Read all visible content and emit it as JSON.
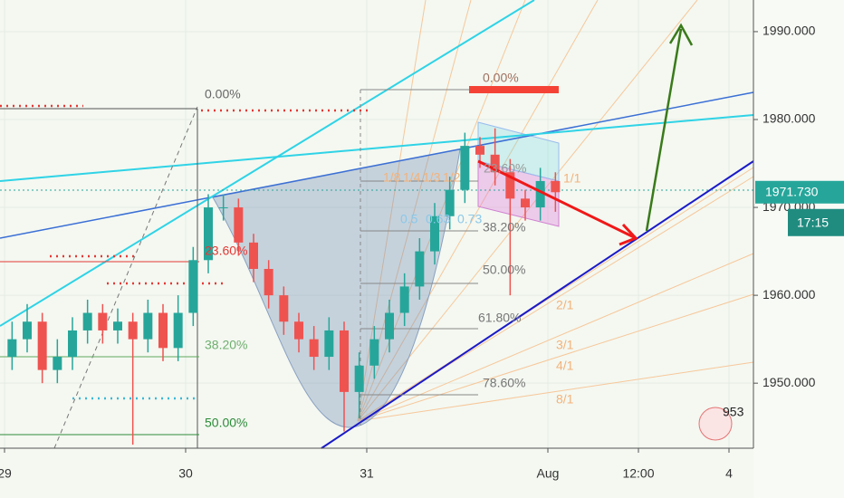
{
  "chart_data": {
    "type": "candlestick",
    "x": [
      1,
      3,
      5,
      7,
      9,
      11,
      13,
      15,
      17,
      19,
      21,
      23,
      25,
      27,
      29,
      31,
      33,
      35,
      37,
      39,
      41,
      43,
      45,
      47,
      49,
      51,
      53,
      55,
      57,
      59,
      61,
      63,
      65,
      67,
      69,
      71,
      73
    ],
    "open": [
      1953,
      1955,
      1957,
      1951.5,
      1953,
      1956,
      1958,
      1956,
      1957,
      1955,
      1958,
      1954,
      1958,
      1964,
      1970,
      1970,
      1966,
      1963,
      1960,
      1957,
      1955,
      1953,
      1956,
      1949,
      1952,
      1955,
      1958,
      1961,
      1965,
      1969,
      1972,
      1977,
      1976,
      1974,
      1971,
      1970,
      1973
    ],
    "high": [
      1957,
      1959,
      1958,
      1955,
      1957.5,
      1959.5,
      1959,
      1958.5,
      1958,
      1959.5,
      1959,
      1960,
      1965.5,
      1971.5,
      1971.5,
      1971,
      1967,
      1964,
      1961,
      1958,
      1956.5,
      1957.5,
      1957,
      1953.5,
      1956.5,
      1959.5,
      1962.5,
      1966.5,
      1970.5,
      1973.5,
      1978.5,
      1978,
      1979,
      1975.5,
      1972,
      1974.5,
      1974
    ],
    "low": [
      1951.5,
      1953.5,
      1950,
      1950,
      1951.5,
      1954.5,
      1954.5,
      1954.5,
      1943,
      1953.5,
      1952.5,
      1952.5,
      1956.5,
      1962.5,
      1968.5,
      1964.5,
      1961.5,
      1958.5,
      1955.5,
      1953.5,
      1951.5,
      1951.5,
      1944.5,
      1946,
      1950.5,
      1953.5,
      1956.5,
      1959.5,
      1963.5,
      1967.5,
      1970.5,
      1974.5,
      1972.5,
      1960,
      1968.5,
      1968.5,
      1969.5
    ],
    "close": [
      1955,
      1957,
      1951.5,
      1953,
      1956,
      1958,
      1956,
      1957,
      1955,
      1958,
      1954,
      1958,
      1964,
      1970,
      1970,
      1966,
      1963,
      1960,
      1957,
      1955,
      1953,
      1956,
      1949,
      1952,
      1955,
      1958,
      1961,
      1965,
      1969,
      1972,
      1977,
      1976,
      1974,
      1971,
      1970,
      1973,
      1971.73
    ],
    "up_color": "#26a69a",
    "down_color": "#ef5350",
    "xlim": [
      -0.6,
      99
    ],
    "xticks": [
      {
        "value": 0,
        "label": "29"
      },
      {
        "value": 24,
        "label": "30"
      },
      {
        "value": 48,
        "label": "31"
      },
      {
        "value": 72,
        "label": "Aug"
      },
      {
        "value": 84,
        "label": "12:00"
      },
      {
        "value": 96,
        "label": "4"
      }
    ],
    "ylim": [
      1942.6,
      1993.6
    ],
    "yticks": [
      {
        "value": 1950,
        "label": "1950.000"
      },
      {
        "value": 1960,
        "label": "1960.000"
      },
      {
        "value": 1970,
        "label": "1970.000"
      },
      {
        "value": 1980,
        "label": "1980.000"
      },
      {
        "value": 1990,
        "label": "1990.000"
      }
    ],
    "grid": true,
    "last_price": {
      "value": 1971.73,
      "label": "1971.730"
    },
    "countdown": "17:15",
    "annotations": {
      "left_fib": [
        "0.00%",
        "23.60%",
        "38.20%",
        "50.00%"
      ],
      "right_fib": [
        "0.00%",
        "23.60%",
        "38.20%",
        "50.00%",
        "61.80%",
        "78.60%"
      ],
      "fan": [
        "1/1",
        "2/1",
        "3/1",
        "4/1",
        "8/1",
        "1/8",
        "1/4",
        "1/3",
        "1/2"
      ],
      "fan_ratios": [
        "0.5",
        "0.63",
        "0.73"
      ],
      "badge": "953"
    }
  }
}
